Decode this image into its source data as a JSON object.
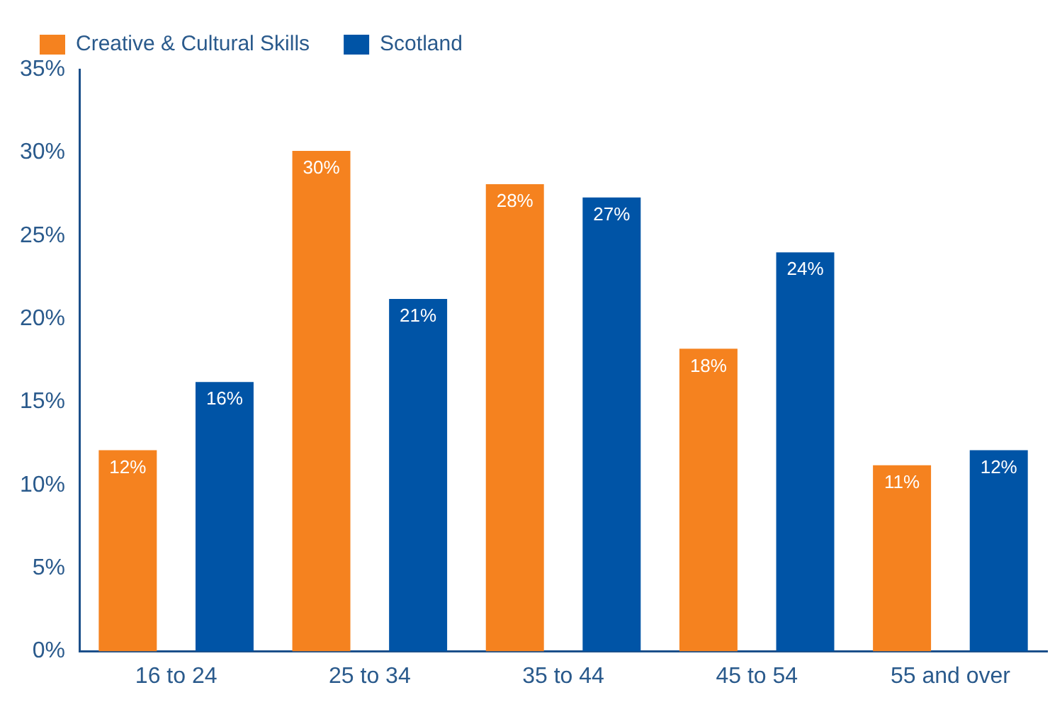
{
  "chart_data": {
    "type": "bar",
    "categories": [
      "16 to 24",
      "25 to 34",
      "35 to 44",
      "45 to 54",
      "55 and over"
    ],
    "series": [
      {
        "name": "Creative & Cultural Skills",
        "color": "#f5821f",
        "values": [
          12.1,
          30.1,
          28.1,
          18.2,
          11.2
        ],
        "value_labels": [
          "12%",
          "30%",
          "28%",
          "18%",
          "11%"
        ]
      },
      {
        "name": "Scotland",
        "color": "#0054a6",
        "values": [
          16.2,
          21.2,
          27.3,
          24,
          12.1
        ],
        "value_labels": [
          "16%",
          "21%",
          "27%",
          "24%",
          "12%"
        ]
      }
    ],
    "ylim": [
      0,
      35
    ],
    "yticks": [
      {
        "value": 0,
        "label": "0%"
      },
      {
        "value": 5,
        "label": "5%"
      },
      {
        "value": 10,
        "label": "10%"
      },
      {
        "value": 15,
        "label": "15%"
      },
      {
        "value": 20,
        "label": "20%"
      },
      {
        "value": 25,
        "label": "25%"
      },
      {
        "value": 30,
        "label": "30%"
      },
      {
        "value": 35,
        "label": "35%"
      }
    ],
    "grid": false,
    "legend": "top left"
  }
}
